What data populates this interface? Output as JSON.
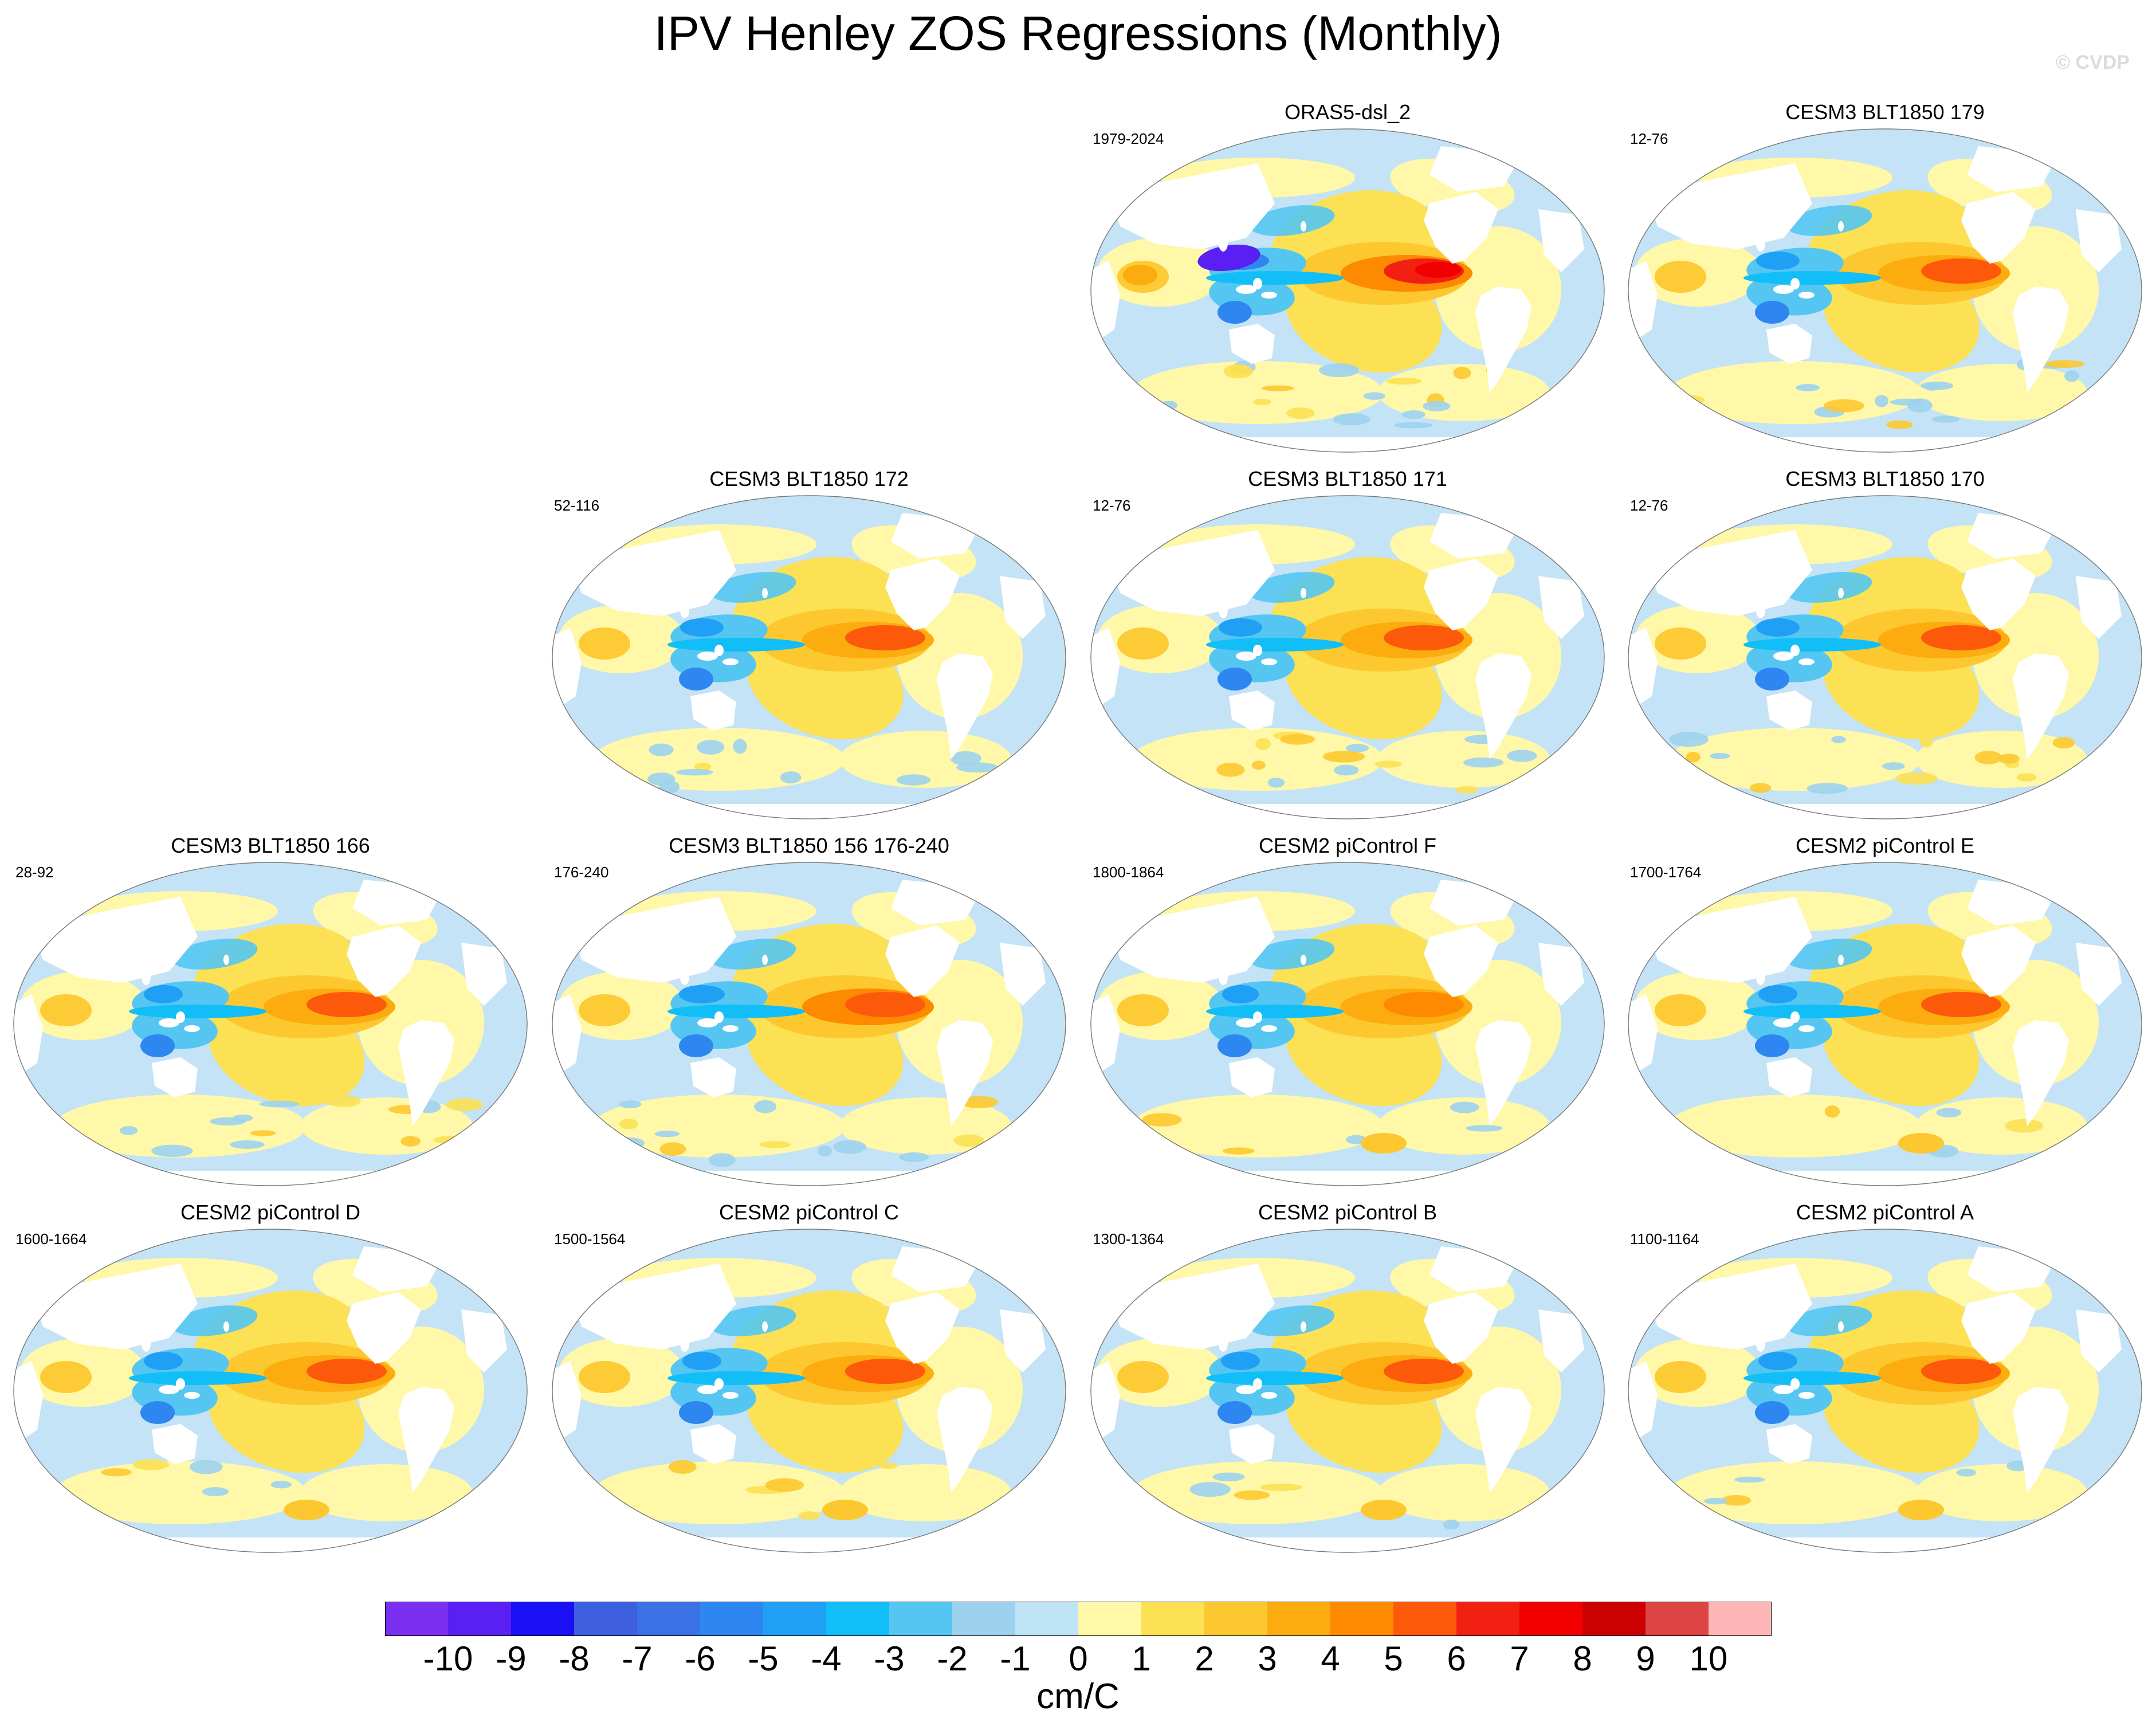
{
  "title": "IPV Henley ZOS Regressions (Monthly)",
  "watermark": "© CVDP",
  "panels": [
    {
      "id": "oras5",
      "title": "ORAS5-dsl_2",
      "period": "1979-2024",
      "intensity": 1.25,
      "noise": 0.9
    },
    {
      "id": "cesm3-179",
      "title": "CESM3 BLT1850 179",
      "period": "12-76",
      "intensity": 0.95,
      "noise": 0.75
    },
    {
      "id": "cesm3-172",
      "title": "CESM3 BLT1850 172",
      "period": "52-116",
      "intensity": 0.95,
      "noise": 0.7
    },
    {
      "id": "cesm3-171",
      "title": "CESM3 BLT1850 171",
      "period": "12-76",
      "intensity": 0.95,
      "noise": 0.7
    },
    {
      "id": "cesm3-170",
      "title": "CESM3 BLT1850 170",
      "period": "12-76",
      "intensity": 0.95,
      "noise": 0.7
    },
    {
      "id": "cesm3-166",
      "title": "CESM3 BLT1850 166",
      "period": "28-92",
      "intensity": 0.85,
      "noise": 0.7
    },
    {
      "id": "cesm3-156",
      "title": "CESM3 BLT1850 156 176-240",
      "period": "176-240",
      "intensity": 1.0,
      "noise": 0.7
    },
    {
      "id": "cesm2-F",
      "title": "CESM2 piControl F",
      "period": "1800-1864",
      "intensity": 0.8,
      "noise": 0.25
    },
    {
      "id": "cesm2-E",
      "title": "CESM2 piControl E",
      "period": "1700-1764",
      "intensity": 0.85,
      "noise": 0.25
    },
    {
      "id": "cesm2-D",
      "title": "CESM2 piControl D",
      "period": "1600-1664",
      "intensity": 0.85,
      "noise": 0.25
    },
    {
      "id": "cesm2-C",
      "title": "CESM2 piControl C",
      "period": "1500-1564",
      "intensity": 0.85,
      "noise": 0.25
    },
    {
      "id": "cesm2-B",
      "title": "CESM2 piControl B",
      "period": "1300-1364",
      "intensity": 0.85,
      "noise": 0.25
    },
    {
      "id": "cesm2-A",
      "title": "CESM2 piControl A",
      "period": "1100-1164",
      "intensity": 0.85,
      "noise": 0.25
    }
  ],
  "colorbar": {
    "levels": [
      "-10",
      "-9",
      "-8",
      "-7",
      "-6",
      "-5",
      "-4",
      "-3",
      "-2",
      "-1",
      "0",
      "1",
      "2",
      "3",
      "4",
      "5",
      "6",
      "7",
      "8",
      "9",
      "10"
    ],
    "colors": [
      "#7b2ff0",
      "#5a1ff2",
      "#1a10f5",
      "#3d5fe0",
      "#3a72e6",
      "#2e86f0",
      "#20a0f5",
      "#11bef8",
      "#55c6f2",
      "#9dd2ee",
      "#bfe4f6",
      "#fff8a8",
      "#fbe153",
      "#fdc82f",
      "#fdac0f",
      "#fd8a00",
      "#fc5a0a",
      "#f22012",
      "#f20000",
      "#cc0000",
      "#dd4444",
      "#ffb6b6"
    ],
    "units": "cm/C"
  }
}
